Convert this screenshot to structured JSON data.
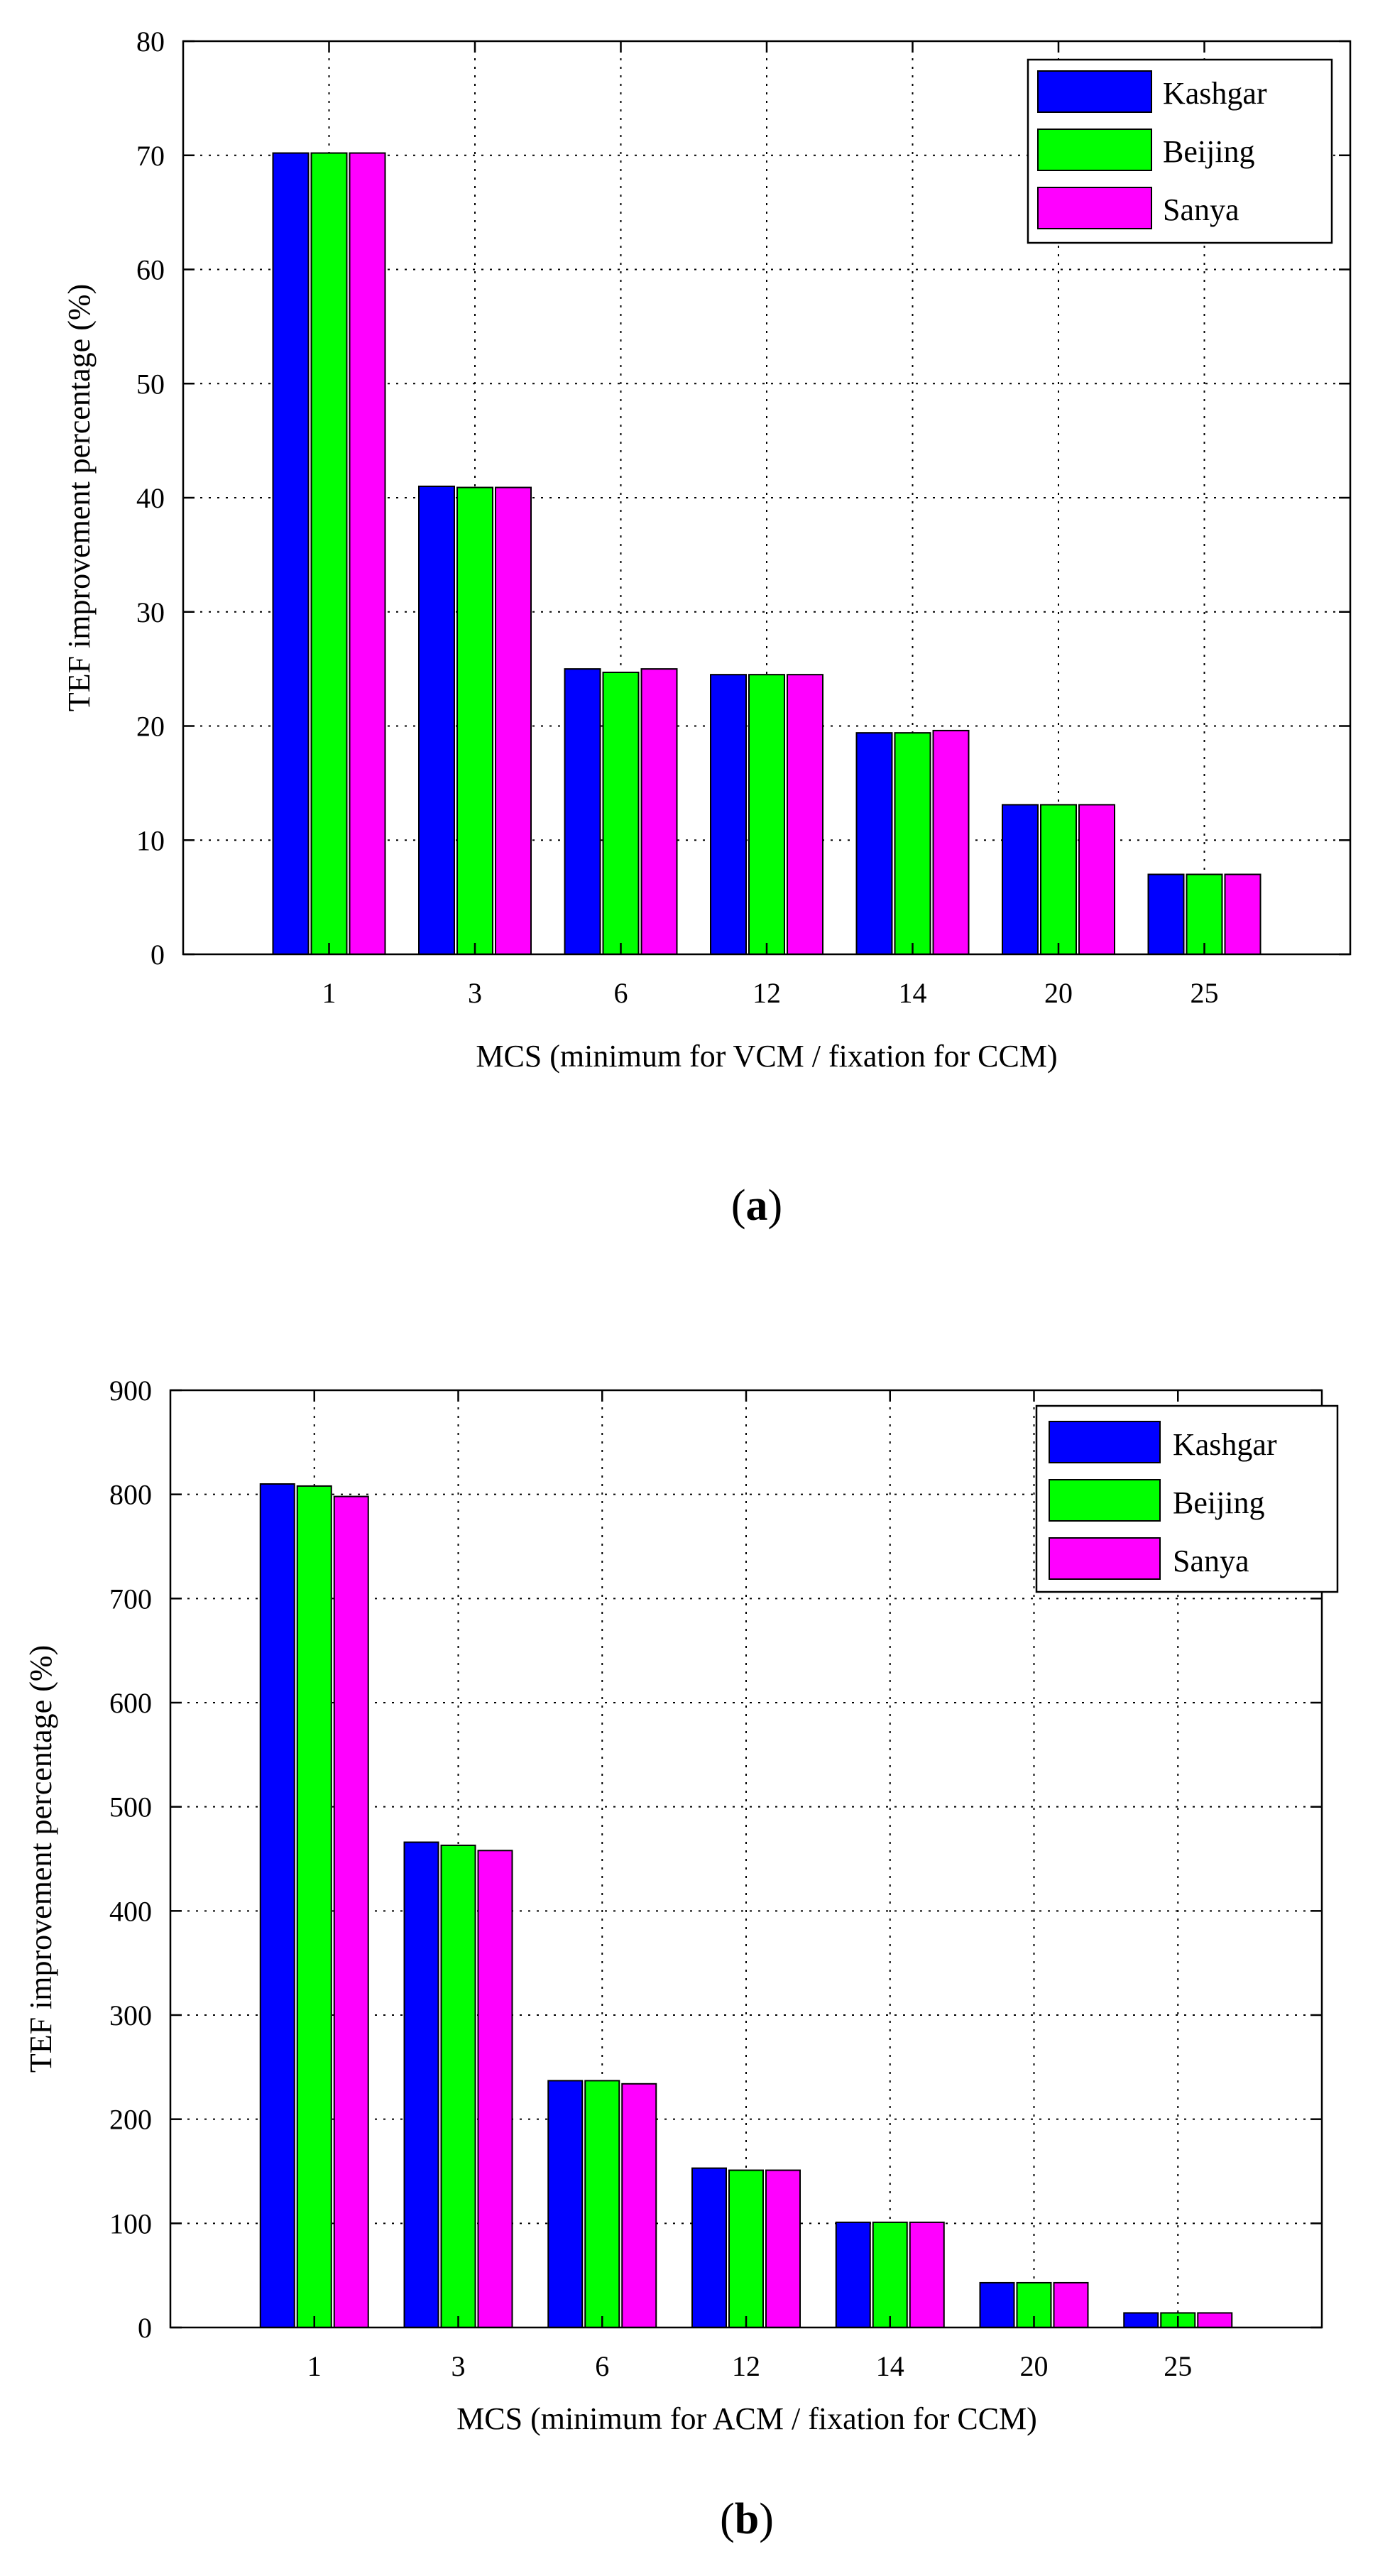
{
  "colors": {
    "Kashgar": "#0000ff",
    "Beijing": "#00ff00",
    "Sanya": "#ff00ff"
  },
  "chart_data": [
    {
      "type": "bar",
      "caption_open": "(",
      "caption_letter": "a",
      "caption_close": ")",
      "categories": [
        "1",
        "3",
        "6",
        "12",
        "14",
        "20",
        "25"
      ],
      "series": [
        {
          "name": "Kashgar",
          "values": [
            70.2,
            41.0,
            25.0,
            24.5,
            19.4,
            13.1,
            7.0
          ]
        },
        {
          "name": "Beijing",
          "values": [
            70.2,
            40.9,
            24.7,
            24.5,
            19.4,
            13.1,
            7.0
          ]
        },
        {
          "name": "Sanya",
          "values": [
            70.2,
            40.9,
            25.0,
            24.5,
            19.6,
            13.1,
            7.0
          ]
        }
      ],
      "ylim": [
        0,
        80
      ],
      "yticks": [
        "0",
        "10",
        "20",
        "30",
        "40",
        "50",
        "60",
        "70",
        "80"
      ],
      "xlabel": "MCS (minimum for VCM / fixation for CCM)",
      "ylabel": "TEF improvement percentage (%)",
      "legend_position": "top-right",
      "grid": true
    },
    {
      "type": "bar",
      "caption_open": "(",
      "caption_letter": "b",
      "caption_close": ")",
      "categories": [
        "1",
        "3",
        "6",
        "12",
        "14",
        "20",
        "25"
      ],
      "series": [
        {
          "name": "Kashgar",
          "values": [
            810,
            466,
            237,
            153,
            101,
            43,
            14
          ]
        },
        {
          "name": "Beijing",
          "values": [
            808,
            463,
            237,
            151,
            101,
            43,
            14
          ]
        },
        {
          "name": "Sanya",
          "values": [
            798,
            458,
            234,
            151,
            101,
            43,
            14
          ]
        }
      ],
      "ylim": [
        0,
        900
      ],
      "yticks": [
        "0",
        "100",
        "200",
        "300",
        "400",
        "500",
        "600",
        "700",
        "800",
        "900"
      ],
      "xlabel": "MCS (minimum for ACM / fixation for CCM)",
      "ylabel": "TEF improvement percentage (%)",
      "legend_position": "top-right",
      "grid": true
    }
  ]
}
